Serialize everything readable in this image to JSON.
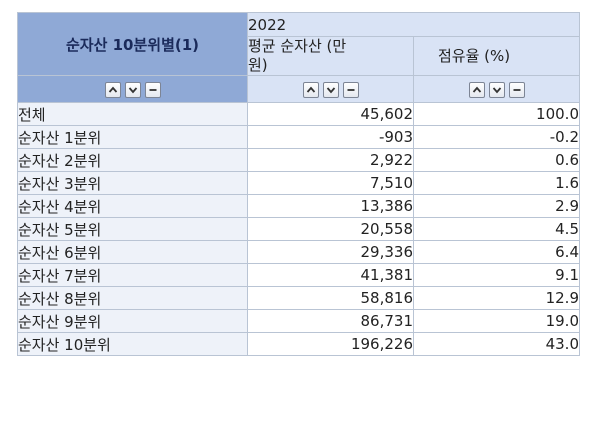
{
  "table": {
    "corner_label": "순자산 10분위별(1)",
    "year": "2022",
    "columns": [
      {
        "label": "평균 순자산 (만원)",
        "line1": "평균 순자산 (만",
        "line2": "원)"
      },
      {
        "label": "점유율 (%)"
      }
    ],
    "controls": {
      "up_icon": "chevron-up-icon",
      "down_icon": "chevron-down-icon",
      "minus_icon": "minus-icon"
    },
    "rows": [
      {
        "label": "전체",
        "avg": "45,602",
        "share": "100.0"
      },
      {
        "label": "순자산 1분위",
        "avg": "-903",
        "share": "-0.2"
      },
      {
        "label": "순자산 2분위",
        "avg": "2,922",
        "share": "0.6"
      },
      {
        "label": "순자산 3분위",
        "avg": "7,510",
        "share": "1.6"
      },
      {
        "label": "순자산 4분위",
        "avg": "13,386",
        "share": "2.9"
      },
      {
        "label": "순자산 5분위",
        "avg": "20,558",
        "share": "4.5"
      },
      {
        "label": "순자산 6분위",
        "avg": "29,336",
        "share": "6.4"
      },
      {
        "label": "순자산 7분위",
        "avg": "41,381",
        "share": "9.1"
      },
      {
        "label": "순자산 8분위",
        "avg": "58,816",
        "share": "12.9"
      },
      {
        "label": "순자산 9분위",
        "avg": "86,731",
        "share": "19.0"
      },
      {
        "label": "순자산 10분위",
        "avg": "196,226",
        "share": "43.0"
      }
    ]
  }
}
